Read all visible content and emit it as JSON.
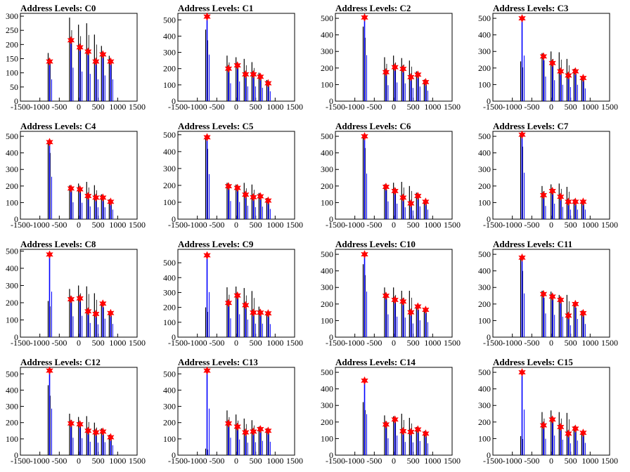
{
  "page": {
    "background": "#ffffff"
  },
  "styles": {
    "frame_color": "#000000",
    "black_bar_color": "#000000",
    "blue_bar_color": "#0000ff",
    "marker_color": "#ff0000"
  },
  "chart_data": [
    {
      "type": "bar",
      "title": "Address Levels: C0",
      "xlim": [
        -1500,
        1500
      ],
      "ylim": [
        0,
        310
      ],
      "yticks": [
        0,
        50,
        100,
        150,
        200,
        250,
        300
      ],
      "xticks": [
        -1500,
        -1000,
        -500,
        0,
        500,
        1000,
        1500
      ],
      "peaks": [
        {
          "x": -750,
          "y": 140,
          "black": 170
        },
        {
          "x": -200,
          "y": 215,
          "black": 295
        },
        {
          "x": 30,
          "y": 190,
          "black": 270
        },
        {
          "x": 240,
          "y": 175,
          "black": 275
        },
        {
          "x": 440,
          "y": 140,
          "black": 235
        },
        {
          "x": 620,
          "y": 165,
          "black": 195
        },
        {
          "x": 820,
          "y": 140,
          "black": 160
        }
      ]
    },
    {
      "type": "bar",
      "title": "Address Levels: C1",
      "xlim": [
        -1500,
        1500
      ],
      "ylim": [
        0,
        540
      ],
      "yticks": [
        0,
        100,
        200,
        300,
        400,
        500
      ],
      "xticks": [
        -1500,
        -1000,
        -500,
        0,
        500,
        1000,
        1500
      ],
      "peaks": [
        {
          "x": -750,
          "y": 520,
          "black": 440
        },
        {
          "x": -200,
          "y": 200,
          "black": 280
        },
        {
          "x": 30,
          "y": 220,
          "black": 270
        },
        {
          "x": 240,
          "y": 165,
          "black": 260
        },
        {
          "x": 440,
          "y": 165,
          "black": 240
        },
        {
          "x": 620,
          "y": 150,
          "black": 175
        },
        {
          "x": 820,
          "y": 110,
          "black": 130
        }
      ]
    },
    {
      "type": "bar",
      "title": "Address Levels: C2",
      "xlim": [
        -1500,
        1500
      ],
      "ylim": [
        0,
        530
      ],
      "yticks": [
        0,
        100,
        200,
        300,
        400,
        500
      ],
      "xticks": [
        -1500,
        -1000,
        -500,
        0,
        500,
        1000,
        1500
      ],
      "peaks": [
        {
          "x": -750,
          "y": 505,
          "black": 450
        },
        {
          "x": -200,
          "y": 175,
          "black": 265
        },
        {
          "x": 30,
          "y": 205,
          "black": 275
        },
        {
          "x": 240,
          "y": 195,
          "black": 260
        },
        {
          "x": 440,
          "y": 145,
          "black": 245
        },
        {
          "x": 620,
          "y": 160,
          "black": 180
        },
        {
          "x": 820,
          "y": 115,
          "black": 130
        }
      ]
    },
    {
      "type": "bar",
      "title": "Address Levels: C3",
      "xlim": [
        -1500,
        1500
      ],
      "ylim": [
        0,
        530
      ],
      "yticks": [
        0,
        100,
        200,
        300,
        400,
        500
      ],
      "xticks": [
        -1500,
        -1000,
        -500,
        0,
        500,
        1000,
        1500
      ],
      "peaks": [
        {
          "x": -750,
          "y": 500,
          "black": 240
        },
        {
          "x": -200,
          "y": 270,
          "black": 290
        },
        {
          "x": 30,
          "y": 230,
          "black": 300
        },
        {
          "x": 240,
          "y": 180,
          "black": 295
        },
        {
          "x": 440,
          "y": 155,
          "black": 255
        },
        {
          "x": 620,
          "y": 180,
          "black": 195
        },
        {
          "x": 820,
          "y": 140,
          "black": 150
        }
      ]
    },
    {
      "type": "bar",
      "title": "Address Levels: C4",
      "xlim": [
        -1500,
        1500
      ],
      "ylim": [
        0,
        530
      ],
      "yticks": [
        0,
        100,
        200,
        300,
        400,
        500
      ],
      "xticks": [
        -1500,
        -1000,
        -500,
        0,
        500,
        1000,
        1500
      ],
      "peaks": [
        {
          "x": -750,
          "y": 465,
          "black": 470
        },
        {
          "x": -200,
          "y": 185,
          "black": 205
        },
        {
          "x": 30,
          "y": 180,
          "black": 215
        },
        {
          "x": 240,
          "y": 140,
          "black": 225
        },
        {
          "x": 440,
          "y": 130,
          "black": 205
        },
        {
          "x": 620,
          "y": 130,
          "black": 150
        },
        {
          "x": 820,
          "y": 105,
          "black": 120
        }
      ]
    },
    {
      "type": "bar",
      "title": "Address Levels: C5",
      "xlim": [
        -1500,
        1500
      ],
      "ylim": [
        0,
        520
      ],
      "yticks": [
        0,
        100,
        200,
        300,
        400,
        500
      ],
      "xticks": [
        -1500,
        -1000,
        -500,
        0,
        500,
        1000,
        1500
      ],
      "peaks": [
        {
          "x": -750,
          "y": 485,
          "black": 490
        },
        {
          "x": -200,
          "y": 195,
          "black": 215
        },
        {
          "x": 30,
          "y": 185,
          "black": 205
        },
        {
          "x": 240,
          "y": 145,
          "black": 215
        },
        {
          "x": 440,
          "y": 130,
          "black": 205
        },
        {
          "x": 620,
          "y": 135,
          "black": 155
        },
        {
          "x": 820,
          "y": 110,
          "black": 125
        }
      ]
    },
    {
      "type": "bar",
      "title": "Address Levels: C6",
      "xlim": [
        -1500,
        1500
      ],
      "ylim": [
        0,
        530
      ],
      "yticks": [
        0,
        100,
        200,
        300,
        400,
        500
      ],
      "xticks": [
        -1500,
        -1000,
        -500,
        0,
        500,
        1000,
        1500
      ],
      "peaks": [
        {
          "x": -750,
          "y": 500,
          "black": 505
        },
        {
          "x": -200,
          "y": 195,
          "black": 210
        },
        {
          "x": 30,
          "y": 170,
          "black": 220
        },
        {
          "x": 240,
          "y": 130,
          "black": 225
        },
        {
          "x": 440,
          "y": 95,
          "black": 200
        },
        {
          "x": 620,
          "y": 140,
          "black": 160
        },
        {
          "x": 820,
          "y": 105,
          "black": 115
        }
      ]
    },
    {
      "type": "bar",
      "title": "Address Levels: C7",
      "xlim": [
        -1500,
        1500
      ],
      "ylim": [
        0,
        530
      ],
      "yticks": [
        0,
        100,
        200,
        300,
        400,
        500
      ],
      "xticks": [
        -1500,
        -1000,
        -500,
        0,
        500,
        1000,
        1500
      ],
      "peaks": [
        {
          "x": -750,
          "y": 510,
          "black": 515
        },
        {
          "x": -200,
          "y": 145,
          "black": 200
        },
        {
          "x": 30,
          "y": 170,
          "black": 210
        },
        {
          "x": 240,
          "y": 135,
          "black": 215
        },
        {
          "x": 440,
          "y": 105,
          "black": 195
        },
        {
          "x": 620,
          "y": 105,
          "black": 120
        },
        {
          "x": 820,
          "y": 105,
          "black": 110
        }
      ]
    },
    {
      "type": "bar",
      "title": "Address Levels: C8",
      "xlim": [
        -1500,
        1500
      ],
      "ylim": [
        0,
        510
      ],
      "yticks": [
        0,
        100,
        200,
        300,
        400,
        500
      ],
      "xticks": [
        -1500,
        -1000,
        -500,
        0,
        500,
        1000,
        1500
      ],
      "peaks": [
        {
          "x": -750,
          "y": 480,
          "black": 210
        },
        {
          "x": -200,
          "y": 220,
          "black": 280
        },
        {
          "x": 30,
          "y": 225,
          "black": 300
        },
        {
          "x": 240,
          "y": 150,
          "black": 295
        },
        {
          "x": 440,
          "y": 135,
          "black": 255
        },
        {
          "x": 620,
          "y": 195,
          "black": 205
        },
        {
          "x": 820,
          "y": 140,
          "black": 150
        }
      ]
    },
    {
      "type": "bar",
      "title": "Address Levels: C9",
      "xlim": [
        -1500,
        1500
      ],
      "ylim": [
        0,
        590
      ],
      "yticks": [
        0,
        100,
        200,
        300,
        400,
        500
      ],
      "xticks": [
        -1500,
        -1000,
        -500,
        0,
        500,
        1000,
        1500
      ],
      "peaks": [
        {
          "x": -750,
          "y": 550,
          "black": 200
        },
        {
          "x": -200,
          "y": 230,
          "black": 335
        },
        {
          "x": 30,
          "y": 280,
          "black": 340
        },
        {
          "x": 240,
          "y": 215,
          "black": 330
        },
        {
          "x": 440,
          "y": 165,
          "black": 310
        },
        {
          "x": 620,
          "y": 165,
          "black": 205
        },
        {
          "x": 820,
          "y": 160,
          "black": 170
        }
      ]
    },
    {
      "type": "bar",
      "title": "Address Levels: C10",
      "xlim": [
        -1500,
        1500
      ],
      "ylim": [
        0,
        530
      ],
      "yticks": [
        0,
        100,
        200,
        300,
        400,
        500
      ],
      "xticks": [
        -1500,
        -1000,
        -500,
        0,
        500,
        1000,
        1500
      ],
      "peaks": [
        {
          "x": -750,
          "y": 500,
          "black": 440
        },
        {
          "x": -200,
          "y": 250,
          "black": 300
        },
        {
          "x": 30,
          "y": 225,
          "black": 300
        },
        {
          "x": 240,
          "y": 215,
          "black": 280
        },
        {
          "x": 440,
          "y": 150,
          "black": 280
        },
        {
          "x": 620,
          "y": 185,
          "black": 195
        },
        {
          "x": 820,
          "y": 165,
          "black": 175
        }
      ]
    },
    {
      "type": "bar",
      "title": "Address Levels: C11",
      "xlim": [
        -1500,
        1500
      ],
      "ylim": [
        0,
        530
      ],
      "yticks": [
        0,
        100,
        200,
        300,
        400,
        500
      ],
      "xticks": [
        -1500,
        -1000,
        -500,
        0,
        500,
        1000,
        1500
      ],
      "peaks": [
        {
          "x": -750,
          "y": 480,
          "black": 470
        },
        {
          "x": -200,
          "y": 260,
          "black": 280
        },
        {
          "x": 30,
          "y": 245,
          "black": 275
        },
        {
          "x": 240,
          "y": 225,
          "black": 255
        },
        {
          "x": 440,
          "y": 130,
          "black": 255
        },
        {
          "x": 620,
          "y": 200,
          "black": 210
        },
        {
          "x": 820,
          "y": 145,
          "black": 160
        }
      ]
    },
    {
      "type": "bar",
      "title": "Address Levels: C12",
      "xlim": [
        -1500,
        1500
      ],
      "ylim": [
        0,
        540
      ],
      "yticks": [
        0,
        100,
        200,
        300,
        400,
        500
      ],
      "xticks": [
        -1500,
        -1000,
        -500,
        0,
        500,
        1000,
        1500
      ],
      "peaks": [
        {
          "x": -750,
          "y": 520,
          "black": 430
        },
        {
          "x": -200,
          "y": 195,
          "black": 255
        },
        {
          "x": 30,
          "y": 190,
          "black": 235
        },
        {
          "x": 240,
          "y": 150,
          "black": 240
        },
        {
          "x": 440,
          "y": 140,
          "black": 200
        },
        {
          "x": 620,
          "y": 145,
          "black": 165
        },
        {
          "x": 820,
          "y": 110,
          "black": 125
        }
      ]
    },
    {
      "type": "bar",
      "title": "Address Levels: C13",
      "xlim": [
        -1500,
        1500
      ],
      "ylim": [
        0,
        540
      ],
      "yticks": [
        0,
        100,
        200,
        300,
        400,
        500
      ],
      "xticks": [
        -1500,
        -1000,
        -500,
        0,
        500,
        1000,
        1500
      ],
      "peaks": [
        {
          "x": -750,
          "y": 520,
          "black": 40
        },
        {
          "x": -200,
          "y": 195,
          "black": 275
        },
        {
          "x": 30,
          "y": 175,
          "black": 250
        },
        {
          "x": 240,
          "y": 140,
          "black": 225
        },
        {
          "x": 440,
          "y": 145,
          "black": 215
        },
        {
          "x": 620,
          "y": 160,
          "black": 175
        },
        {
          "x": 820,
          "y": 150,
          "black": 165
        }
      ]
    },
    {
      "type": "bar",
      "title": "Address Levels: C14",
      "xlim": [
        -1500,
        1500
      ],
      "ylim": [
        0,
        530
      ],
      "yticks": [
        0,
        100,
        200,
        300,
        400,
        500
      ],
      "xticks": [
        -1500,
        -1000,
        -500,
        0,
        500,
        1000,
        1500
      ],
      "peaks": [
        {
          "x": -750,
          "y": 450,
          "black": 320
        },
        {
          "x": -200,
          "y": 185,
          "black": 240
        },
        {
          "x": 30,
          "y": 215,
          "black": 235
        },
        {
          "x": 240,
          "y": 145,
          "black": 250
        },
        {
          "x": 440,
          "y": 140,
          "black": 225
        },
        {
          "x": 620,
          "y": 155,
          "black": 170
        },
        {
          "x": 820,
          "y": 130,
          "black": 145
        }
      ]
    },
    {
      "type": "bar",
      "title": "Address Levels: C15",
      "xlim": [
        -1500,
        1500
      ],
      "ylim": [
        0,
        530
      ],
      "yticks": [
        0,
        100,
        200,
        300,
        400,
        500
      ],
      "xticks": [
        -1500,
        -1000,
        -500,
        0,
        500,
        1000,
        1500
      ],
      "peaks": [
        {
          "x": -750,
          "y": 500,
          "black": 115
        },
        {
          "x": -200,
          "y": 180,
          "black": 260
        },
        {
          "x": 30,
          "y": 215,
          "black": 270
        },
        {
          "x": 240,
          "y": 170,
          "black": 260
        },
        {
          "x": 440,
          "y": 130,
          "black": 255
        },
        {
          "x": 620,
          "y": 160,
          "black": 175
        },
        {
          "x": 820,
          "y": 135,
          "black": 145
        }
      ]
    }
  ]
}
